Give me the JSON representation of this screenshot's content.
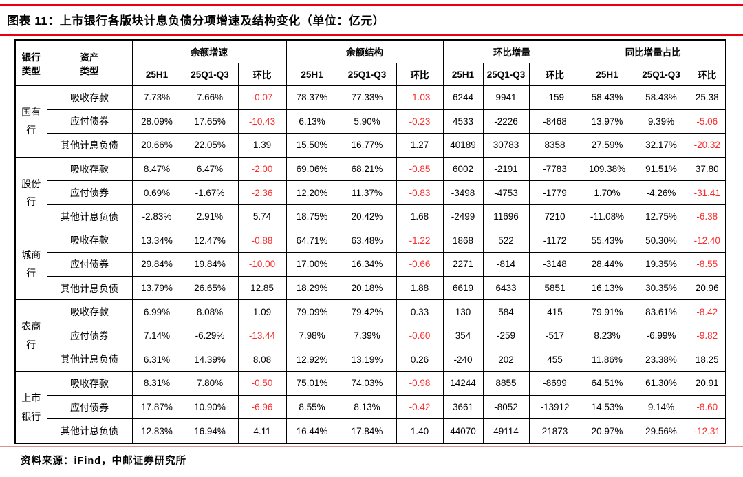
{
  "title": "图表 11：上市银行各版块计息负债分项增速及结构变化（单位：亿元）",
  "source": "资料来源：iFind，中邮证券研究所",
  "accent_colors": {
    "rule_red": "#e60012",
    "rule_pink": "#dc9090",
    "negative_red": "#fb2b2b"
  },
  "table": {
    "bank_type_header_lines": [
      "银行",
      "类型"
    ],
    "asset_type_header_lines": [
      "资产",
      "类型"
    ],
    "groups_header": [
      {
        "label": "余额增速",
        "subs": [
          "25H1",
          "25Q1-Q3",
          "环比"
        ]
      },
      {
        "label": "余额结构",
        "subs": [
          "25H1",
          "25Q1-Q3",
          "环比"
        ]
      },
      {
        "label": "环比增量",
        "subs": [
          "25H1",
          "25Q1-Q3",
          "环比"
        ]
      },
      {
        "label": "同比增量占比",
        "subs": [
          "25H1",
          "25Q1-Q3",
          "环比"
        ]
      }
    ],
    "bank_groups": [
      {
        "bank_lines": [
          "国有",
          "行"
        ],
        "rows": [
          {
            "asset": "吸收存款",
            "cells": [
              "7.73%",
              "7.66%",
              "-0.07",
              "78.37%",
              "77.33%",
              "-1.03",
              "6244",
              "9941",
              "-159",
              "58.43%",
              "58.43%",
              "25.38"
            ],
            "red": [
              2,
              5
            ]
          },
          {
            "asset": "应付债券",
            "cells": [
              "28.09%",
              "17.65%",
              "-10.43",
              "6.13%",
              "5.90%",
              "-0.23",
              "4533",
              "-2226",
              "-8468",
              "13.97%",
              "9.39%",
              "-5.06"
            ],
            "red": [
              2,
              5,
              11
            ]
          },
          {
            "asset": "其他计息负债",
            "cells": [
              "20.66%",
              "22.05%",
              "1.39",
              "15.50%",
              "16.77%",
              "1.27",
              "40189",
              "30783",
              "8358",
              "27.59%",
              "32.17%",
              "-20.32"
            ],
            "red": [
              11
            ]
          }
        ]
      },
      {
        "bank_lines": [
          "股份",
          "行"
        ],
        "rows": [
          {
            "asset": "吸收存款",
            "cells": [
              "8.47%",
              "6.47%",
              "-2.00",
              "69.06%",
              "68.21%",
              "-0.85",
              "6002",
              "-2191",
              "-7783",
              "109.38%",
              "91.51%",
              "37.80"
            ],
            "red": [
              2,
              5
            ]
          },
          {
            "asset": "应付债券",
            "cells": [
              "0.69%",
              "-1.67%",
              "-2.36",
              "12.20%",
              "11.37%",
              "-0.83",
              "-3498",
              "-4753",
              "-1779",
              "1.70%",
              "-4.26%",
              "-31.41"
            ],
            "red": [
              2,
              5,
              11
            ]
          },
          {
            "asset": "其他计息负债",
            "cells": [
              "-2.83%",
              "2.91%",
              "5.74",
              "18.75%",
              "20.42%",
              "1.68",
              "-2499",
              "11696",
              "7210",
              "-11.08%",
              "12.75%",
              "-6.38"
            ],
            "red": [
              11
            ]
          }
        ]
      },
      {
        "bank_lines": [
          "城商",
          "行"
        ],
        "rows": [
          {
            "asset": "吸收存款",
            "cells": [
              "13.34%",
              "12.47%",
              "-0.88",
              "64.71%",
              "63.48%",
              "-1.22",
              "1868",
              "522",
              "-1172",
              "55.43%",
              "50.30%",
              "-12.40"
            ],
            "red": [
              2,
              5,
              11
            ]
          },
          {
            "asset": "应付债券",
            "cells": [
              "29.84%",
              "19.84%",
              "-10.00",
              "17.00%",
              "16.34%",
              "-0.66",
              "2271",
              "-814",
              "-3148",
              "28.44%",
              "19.35%",
              "-8.55"
            ],
            "red": [
              2,
              5,
              11
            ]
          },
          {
            "asset": "其他计息负债",
            "cells": [
              "13.79%",
              "26.65%",
              "12.85",
              "18.29%",
              "20.18%",
              "1.88",
              "6619",
              "6433",
              "5851",
              "16.13%",
              "30.35%",
              "20.96"
            ],
            "red": []
          }
        ]
      },
      {
        "bank_lines": [
          "农商",
          "行"
        ],
        "rows": [
          {
            "asset": "吸收存款",
            "cells": [
              "6.99%",
              "8.08%",
              "1.09",
              "79.09%",
              "79.42%",
              "0.33",
              "130",
              "584",
              "415",
              "79.91%",
              "83.61%",
              "-8.42"
            ],
            "red": [
              11
            ]
          },
          {
            "asset": "应付债券",
            "cells": [
              "7.14%",
              "-6.29%",
              "-13.44",
              "7.98%",
              "7.39%",
              "-0.60",
              "354",
              "-259",
              "-517",
              "8.23%",
              "-6.99%",
              "-9.82"
            ],
            "red": [
              2,
              5,
              11
            ]
          },
          {
            "asset": "其他计息负债",
            "cells": [
              "6.31%",
              "14.39%",
              "8.08",
              "12.92%",
              "13.19%",
              "0.26",
              "-240",
              "202",
              "455",
              "11.86%",
              "23.38%",
              "18.25"
            ],
            "red": []
          }
        ]
      },
      {
        "bank_lines": [
          "上市",
          "银行"
        ],
        "rows": [
          {
            "asset": "吸收存款",
            "cells": [
              "8.31%",
              "7.80%",
              "-0.50",
              "75.01%",
              "74.03%",
              "-0.98",
              "14244",
              "8855",
              "-8699",
              "64.51%",
              "61.30%",
              "20.91"
            ],
            "red": [
              2,
              5
            ]
          },
          {
            "asset": "应付债券",
            "cells": [
              "17.87%",
              "10.90%",
              "-6.96",
              "8.55%",
              "8.13%",
              "-0.42",
              "3661",
              "-8052",
              "-13912",
              "14.53%",
              "9.14%",
              "-8.60"
            ],
            "red": [
              2,
              5,
              11
            ]
          },
          {
            "asset": "其他计息负债",
            "cells": [
              "12.83%",
              "16.94%",
              "4.11",
              "16.44%",
              "17.84%",
              "1.40",
              "44070",
              "49114",
              "21873",
              "20.97%",
              "29.56%",
              "-12.31"
            ],
            "red": [
              11
            ]
          }
        ]
      }
    ]
  }
}
